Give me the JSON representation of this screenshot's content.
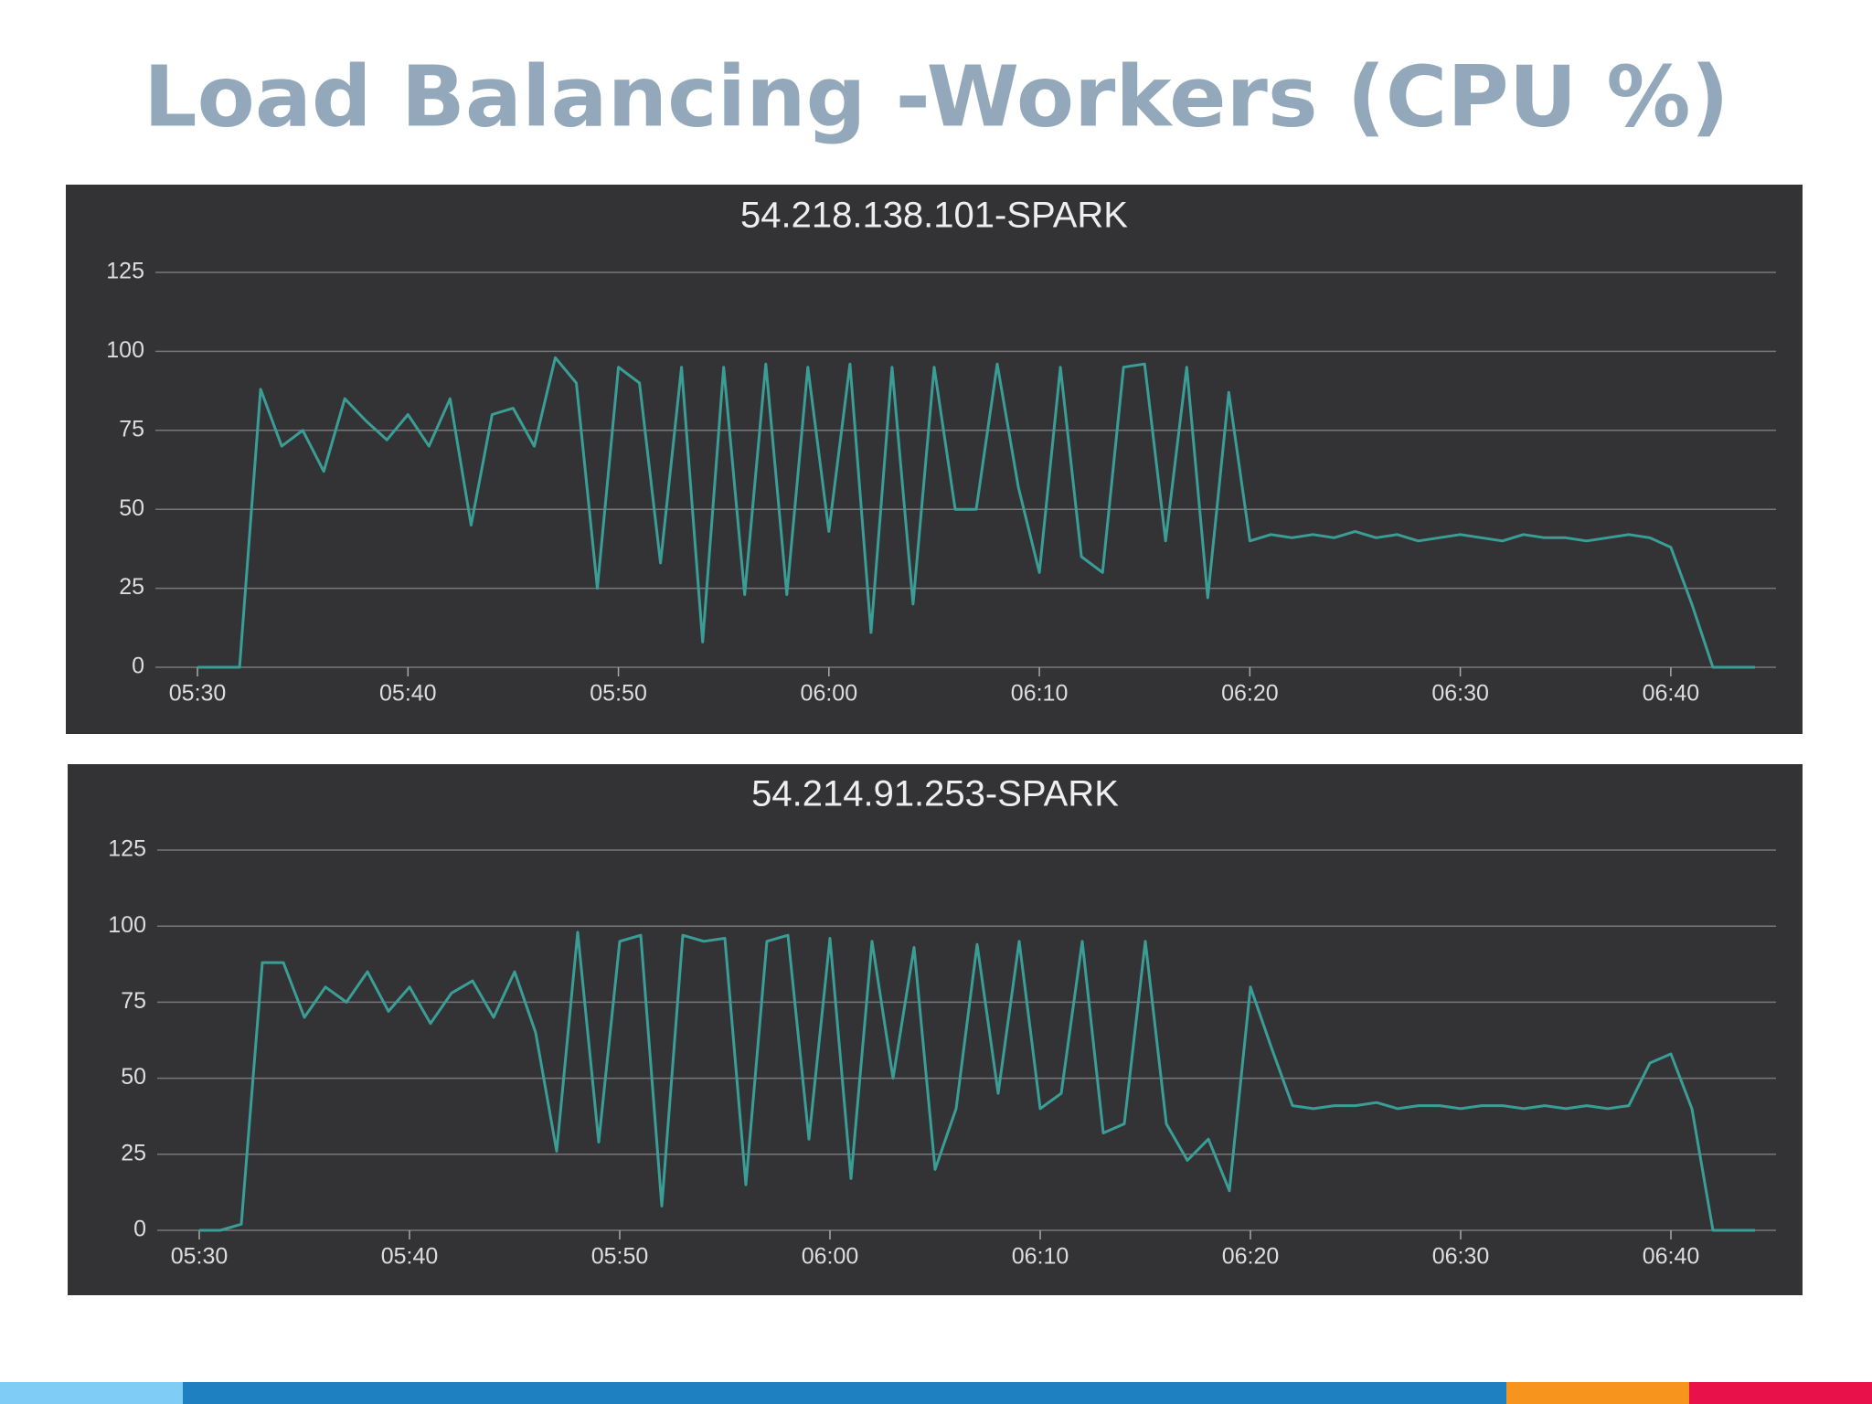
{
  "title": "Load Balancing -Workers (CPU %)",
  "chart_data": [
    {
      "type": "line",
      "title": "54.218.138.101-SPARK",
      "color": "#3a9e97",
      "grid": true,
      "x": [
        "05:30",
        "05:31",
        "05:32",
        "05:33",
        "05:34",
        "05:35",
        "05:36",
        "05:37",
        "05:38",
        "05:39",
        "05:40",
        "05:41",
        "05:42",
        "05:43",
        "05:44",
        "05:45",
        "05:46",
        "05:47",
        "05:48",
        "05:49",
        "05:50",
        "05:51",
        "05:52",
        "05:53",
        "05:54",
        "05:55",
        "05:56",
        "05:57",
        "05:58",
        "05:59",
        "06:00",
        "06:01",
        "06:02",
        "06:03",
        "06:04",
        "06:05",
        "06:06",
        "06:07",
        "06:08",
        "06:09",
        "06:10",
        "06:11",
        "06:12",
        "06:13",
        "06:14",
        "06:15",
        "06:16",
        "06:17",
        "06:18",
        "06:19",
        "06:20",
        "06:21",
        "06:22",
        "06:23",
        "06:24",
        "06:25",
        "06:26",
        "06:27",
        "06:28",
        "06:29",
        "06:30",
        "06:31",
        "06:32",
        "06:33",
        "06:34",
        "06:35",
        "06:36",
        "06:37",
        "06:38",
        "06:39",
        "06:40",
        "06:41",
        "06:42",
        "06:43",
        "06:44"
      ],
      "values": [
        0,
        0,
        0,
        88,
        70,
        75,
        62,
        85,
        78,
        72,
        80,
        70,
        85,
        45,
        80,
        82,
        70,
        98,
        90,
        25,
        95,
        90,
        33,
        95,
        8,
        95,
        23,
        96,
        23,
        95,
        43,
        96,
        11,
        95,
        20,
        95,
        50,
        50,
        96,
        57,
        30,
        95,
        35,
        30,
        95,
        96,
        40,
        95,
        22,
        87,
        40,
        42,
        41,
        42,
        41,
        43,
        41,
        42,
        40,
        41,
        42,
        41,
        40,
        42,
        41,
        41,
        40,
        41,
        42,
        41,
        38,
        20,
        0,
        0,
        0
      ],
      "xlim": [
        "05:28",
        "06:45"
      ],
      "xticks": [
        "05:30",
        "05:40",
        "05:50",
        "06:00",
        "06:10",
        "06:20",
        "06:30",
        "06:40"
      ],
      "ylim": [
        0,
        125
      ],
      "yticks": [
        0,
        25,
        50,
        75,
        100,
        125
      ]
    },
    {
      "type": "line",
      "title": "54.214.91.253-SPARK",
      "color": "#3a9e97",
      "grid": true,
      "x": [
        "05:30",
        "05:31",
        "05:32",
        "05:33",
        "05:34",
        "05:35",
        "05:36",
        "05:37",
        "05:38",
        "05:39",
        "05:40",
        "05:41",
        "05:42",
        "05:43",
        "05:44",
        "05:45",
        "05:46",
        "05:47",
        "05:48",
        "05:49",
        "05:50",
        "05:51",
        "05:52",
        "05:53",
        "05:54",
        "05:55",
        "05:56",
        "05:57",
        "05:58",
        "05:59",
        "06:00",
        "06:01",
        "06:02",
        "06:03",
        "06:04",
        "06:05",
        "06:06",
        "06:07",
        "06:08",
        "06:09",
        "06:10",
        "06:11",
        "06:12",
        "06:13",
        "06:14",
        "06:15",
        "06:16",
        "06:17",
        "06:18",
        "06:19",
        "06:20",
        "06:21",
        "06:22",
        "06:23",
        "06:24",
        "06:25",
        "06:26",
        "06:27",
        "06:28",
        "06:29",
        "06:30",
        "06:31",
        "06:32",
        "06:33",
        "06:34",
        "06:35",
        "06:36",
        "06:37",
        "06:38",
        "06:39",
        "06:40",
        "06:41",
        "06:42",
        "06:43",
        "06:44"
      ],
      "values": [
        0,
        0,
        2,
        88,
        88,
        70,
        80,
        75,
        85,
        72,
        80,
        68,
        78,
        82,
        70,
        85,
        65,
        26,
        98,
        29,
        95,
        97,
        8,
        97,
        95,
        96,
        15,
        95,
        97,
        30,
        96,
        17,
        95,
        50,
        93,
        20,
        40,
        94,
        45,
        95,
        40,
        45,
        95,
        32,
        35,
        95,
        35,
        23,
        30,
        13,
        80,
        60,
        41,
        40,
        41,
        41,
        42,
        40,
        41,
        41,
        40,
        41,
        41,
        40,
        41,
        40,
        41,
        40,
        41,
        55,
        58,
        40,
        0,
        0,
        0
      ],
      "xlim": [
        "05:28",
        "06:45"
      ],
      "xticks": [
        "05:30",
        "05:40",
        "05:50",
        "06:00",
        "06:10",
        "06:20",
        "06:30",
        "06:40"
      ],
      "ylim": [
        0,
        125
      ],
      "yticks": [
        0,
        25,
        50,
        75,
        100,
        125
      ]
    }
  ]
}
